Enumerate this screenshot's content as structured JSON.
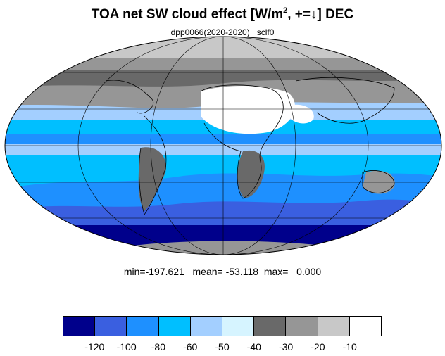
{
  "title": {
    "prefix": "TOA net SW cloud effect [W/m",
    "sup": "2",
    "suffix": ", +=↓]  DEC"
  },
  "subtitle": "dpp0066(2020-2020)   sclf0",
  "stats": "min=-197.621   mean= -53.118  max=   0.000",
  "colorbar": {
    "colors": [
      "#00008b",
      "#3a5fe0",
      "#1e90ff",
      "#00bfff",
      "#a3cfff",
      "#d6f4ff",
      "#696969",
      "#969696",
      "#c8c8c8",
      "#ffffff"
    ],
    "labels": [
      "-120",
      "-100",
      "-80",
      "-60",
      "-50",
      "-40",
      "-30",
      "-20",
      "-10"
    ]
  }
}
